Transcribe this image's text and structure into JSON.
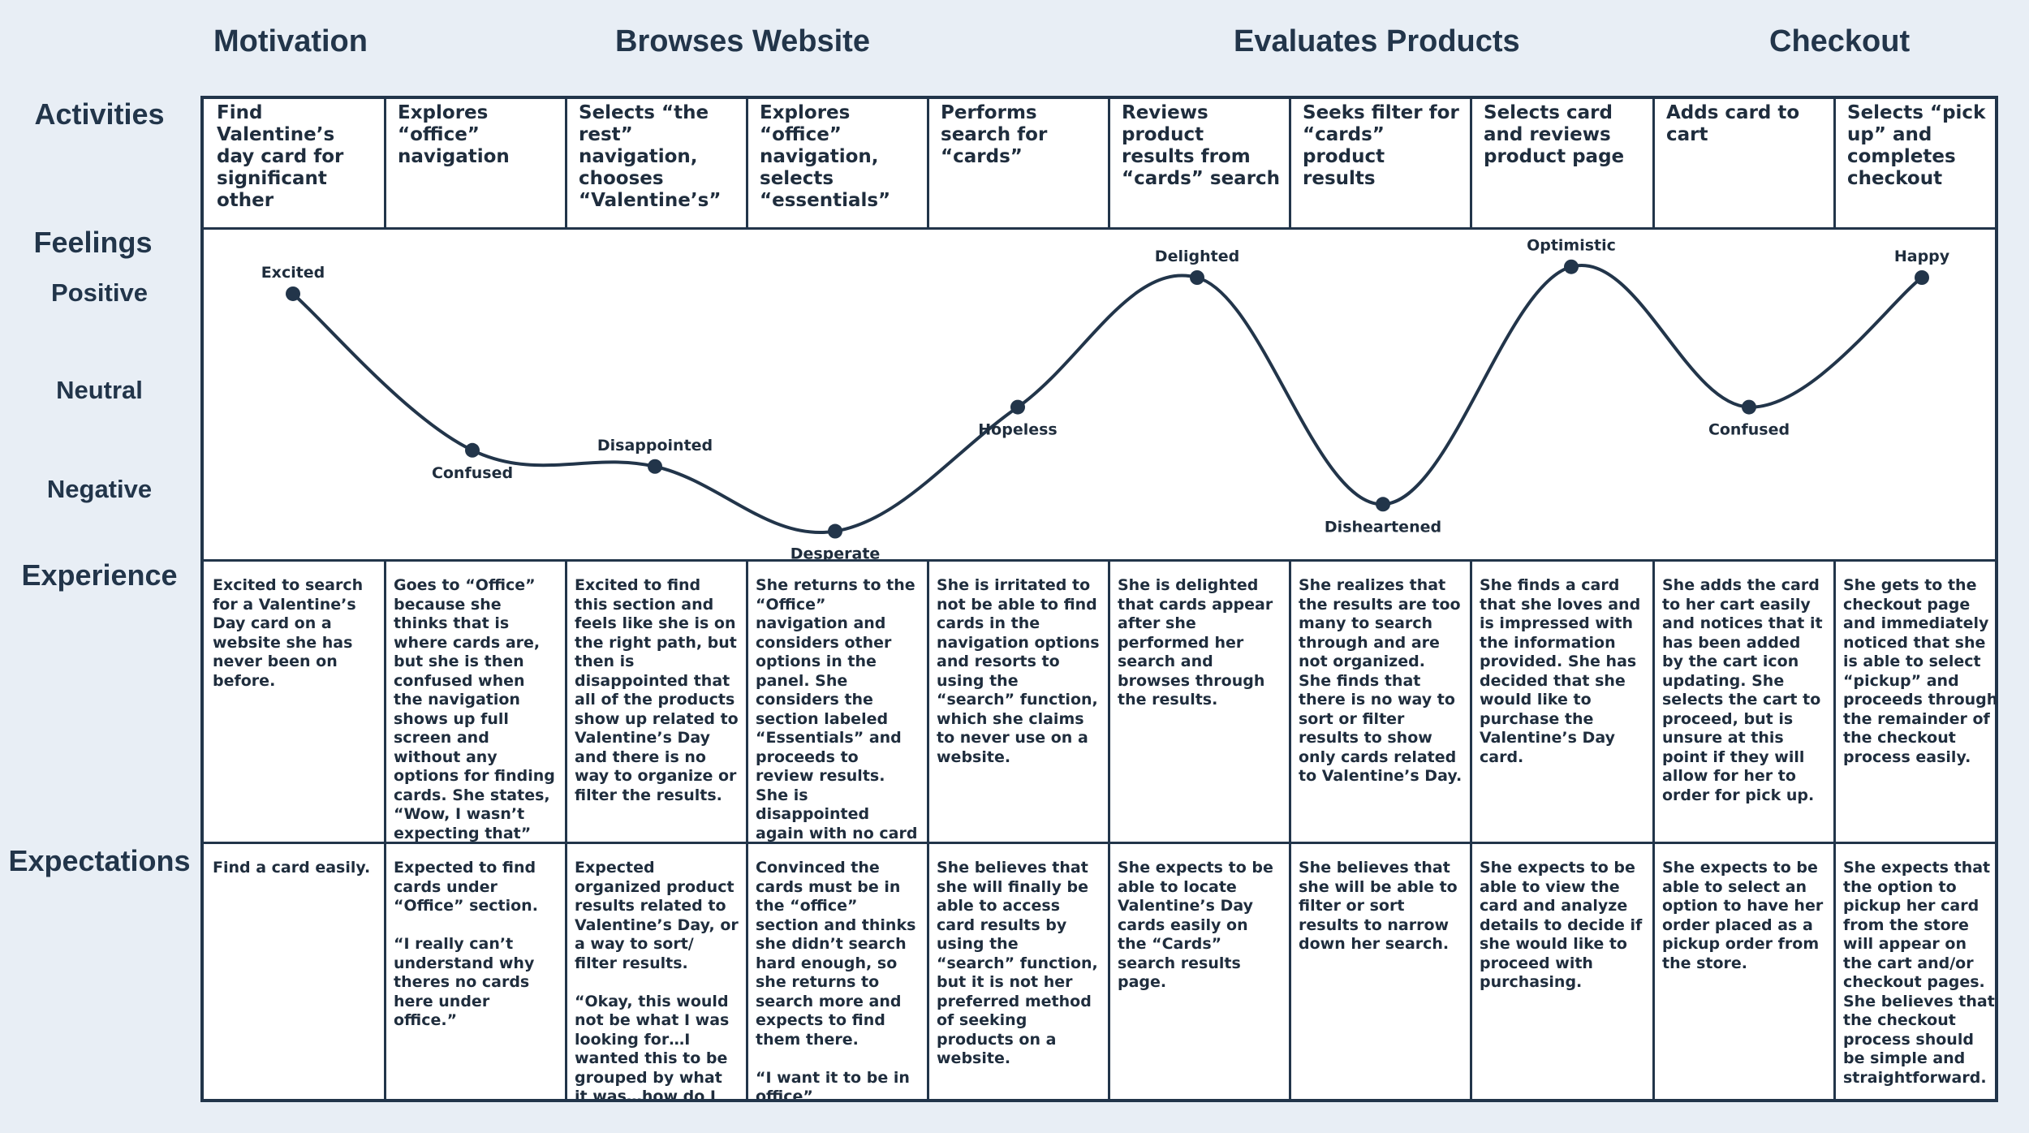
{
  "phases": [
    "Motivation",
    "Browses Website",
    "Evaluates Products",
    "Checkout"
  ],
  "rows": {
    "activities": "Activities",
    "feelings": "Feelings",
    "experience": "Experience",
    "expectations": "Expectations"
  },
  "scale": {
    "positive": "Positive",
    "neutral": "Neutral",
    "negative": "Negative"
  },
  "columns": [
    {
      "activity": "Find Valentine’s day card for significant other",
      "feeling": "Excited",
      "level": 0.85,
      "experience": "Excited to search for a Valentine’s Day card on a website she has never been on before.",
      "expectation": "Find a card easily."
    },
    {
      "activity": "Explores “office” navigation",
      "feeling": "Confused",
      "level": -0.6,
      "experience": "Goes to “Office” because she thinks that is where cards are, but she is then confused when the navigation shows up full screen and without any options for finding cards. She states,  “Wow, I wasn’t expecting that”",
      "expectation": "Expected to find cards under “Office” section.\n\n“I really can’t understand why theres no cards here under office.”"
    },
    {
      "activity": "Selects “the rest” navigation, chooses “Valentine’s”",
      "feeling": "Disappointed",
      "level": -0.75,
      "experience": "Excited to find this section and feels like she is on the right path, but then is disappointed that all of the products show up related to Valentine’s Day and there is no way to organize or filter the results.",
      "expectation": "Expected organized product results related to Valentine’s Day, or a way to sort/ filter results.\n\n“Okay, this would not be what I was looking for…I wanted this to be grouped by what it was…how do I see just the cards?”"
    },
    {
      "activity": "Explores “office” navigation, selects “essentials”",
      "feeling": "Desperate",
      "level": -1.35,
      "experience": "She returns to the “Office” navigation and considers other options in the panel. She considers the section labeled “Essentials” and proceeds to review results. She is disappointed again with no card results.",
      "expectation": "Convinced the cards must be in the “office” section and thinks she didn’t search hard enough, so she returns to search more and expects to find them there.\n\n“I want it to be in office”"
    },
    {
      "activity": "Performs search for “cards”",
      "feeling": "Hopeless",
      "level": -0.2,
      "experience": "She is irritated to not be able to find cards in the navigation options and resorts to using the “search” function, which she claims to never use on a website.",
      "expectation": "She believes that she will finally be able to access card results by using the “search” function, but it is not her preferred method of seeking products on a website."
    },
    {
      "activity": "Reviews product results from “cards” search",
      "feeling": "Delighted",
      "level": 1.0,
      "experience": "She is delighted that cards appear after she performed her search and browses through the results.",
      "expectation": "She expects to be able to locate Valentine’s Day cards easily on the “Cards” search results page."
    },
    {
      "activity": "Seeks filter for “cards” product results",
      "feeling": "Disheartened",
      "level": -1.1,
      "experience": "She realizes that the results are too many to search through and are not organized. She finds that there is no way to sort or filter results to show only cards related to Valentine’s Day.",
      "expectation": "She believes that she will be able to filter or sort results to narrow down her search."
    },
    {
      "activity": "Selects card and reviews product page",
      "feeling": "Optimistic",
      "level": 1.1,
      "experience": "She finds a card that she loves and is impressed with the information provided. She has decided that she would like to purchase the Valentine’s Day card.",
      "expectation": "She expects to be able to view the card and analyze details to decide if she would like to proceed with purchasing."
    },
    {
      "activity": "Adds card to cart",
      "feeling": "Confused",
      "level": -0.2,
      "experience": "She adds the card to her cart easily and notices that it has been added by the cart icon updating. She selects the cart to proceed, but is unsure at this point if they will allow for her to order for pick up.",
      "expectation": "She expects to be able to select an option to have her order placed as a pickup order from the store."
    },
    {
      "activity": "Selects “pick up” and completes checkout",
      "feeling": "Happy",
      "level": 1.0,
      "experience": "She gets to the checkout page and immediately noticed that she is able to select “pickup” and proceeds through the remainder of the checkout process easily.",
      "expectation": "She expects that the option to pickup her card from the store will appear on the cart and/or checkout pages. She believes that the checkout process should be simple and straightforward."
    }
  ]
}
